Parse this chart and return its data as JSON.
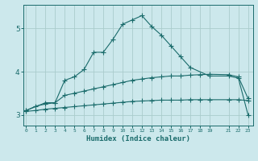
{
  "xlabel": "Humidex (Indice chaleur)",
  "bg_color": "#cce8ec",
  "grid_color": "#aacccc",
  "line_color": "#1a6b6b",
  "x_ticks": [
    0,
    1,
    2,
    3,
    4,
    5,
    6,
    7,
    8,
    9,
    10,
    11,
    12,
    13,
    14,
    15,
    16,
    17,
    18,
    19,
    21,
    22,
    23
  ],
  "ylim": [
    2.75,
    5.55
  ],
  "xlim": [
    -0.3,
    23.5
  ],
  "line1_x": [
    0,
    1,
    2,
    3,
    4,
    5,
    6,
    7,
    8,
    9,
    10,
    11,
    12,
    13,
    14,
    15,
    16,
    17,
    18,
    19,
    21,
    22,
    23
  ],
  "line1_y": [
    3.1,
    3.2,
    3.25,
    3.28,
    3.45,
    3.5,
    3.55,
    3.6,
    3.65,
    3.7,
    3.75,
    3.8,
    3.83,
    3.86,
    3.88,
    3.9,
    3.9,
    3.92,
    3.93,
    3.94,
    3.93,
    3.88,
    3.38
  ],
  "line2_x": [
    0,
    1,
    2,
    3,
    4,
    5,
    6,
    7,
    8,
    9,
    10,
    11,
    12,
    13,
    14,
    15,
    16,
    17,
    18,
    19,
    21,
    22,
    23
  ],
  "line2_y": [
    3.08,
    3.1,
    3.13,
    3.15,
    3.17,
    3.19,
    3.21,
    3.23,
    3.25,
    3.27,
    3.29,
    3.31,
    3.32,
    3.33,
    3.34,
    3.34,
    3.34,
    3.35,
    3.35,
    3.35,
    3.35,
    3.35,
    3.33
  ],
  "line3_x": [
    0,
    2,
    3,
    4,
    5,
    6,
    7,
    8,
    9,
    10,
    11,
    12,
    13,
    14,
    15,
    16,
    17,
    19,
    21,
    22,
    23
  ],
  "line3_y": [
    3.1,
    3.28,
    3.28,
    3.8,
    3.88,
    4.05,
    4.45,
    4.45,
    4.75,
    5.1,
    5.2,
    5.3,
    5.05,
    4.85,
    4.6,
    4.35,
    4.1,
    3.9,
    3.9,
    3.85,
    3.0
  ]
}
